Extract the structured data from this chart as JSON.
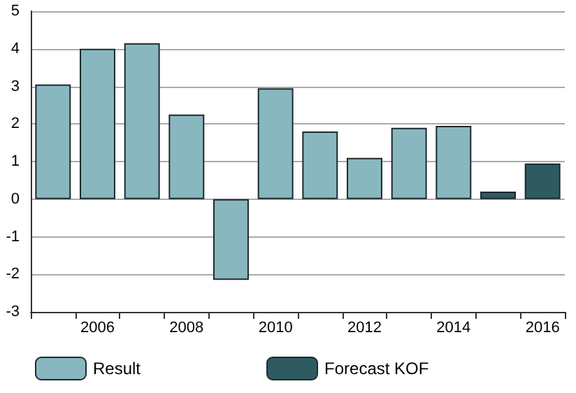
{
  "chart_data": {
    "type": "bar",
    "categories": [
      null,
      "2006",
      null,
      "2008",
      null,
      "2010",
      null,
      "2012",
      null,
      "2014",
      null,
      "2016"
    ],
    "series": [
      {
        "name": "Result",
        "color": "#88b7bf",
        "values": [
          3.05,
          4.0,
          4.15,
          2.25,
          -2.15,
          2.95,
          1.8,
          1.1,
          1.9,
          1.95,
          null,
          null
        ]
      },
      {
        "name": "Forecast KOF",
        "color": "#2e5b61",
        "values": [
          null,
          null,
          null,
          null,
          null,
          null,
          null,
          null,
          null,
          null,
          0.2,
          0.95
        ]
      }
    ],
    "stacked": true,
    "ylim": [
      -3,
      5
    ],
    "yticks": [
      -3,
      -2,
      -1,
      0,
      1,
      2,
      3,
      4,
      5
    ],
    "grid": "y",
    "legend": "bottom"
  }
}
